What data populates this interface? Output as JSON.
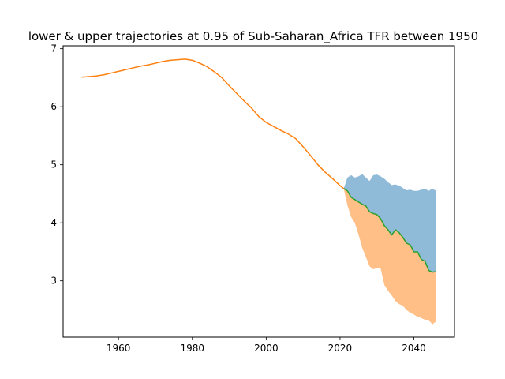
{
  "chart_data": {
    "type": "area",
    "title": "lower & upper trajectories at 0.95 of Sub-Saharan_Africa TFR between 1950",
    "xlabel": "",
    "ylabel": "",
    "xlim": [
      1945,
      2051
    ],
    "ylim": [
      2.03,
      7.05
    ],
    "xticks": [
      1960,
      1980,
      2000,
      2020,
      2040
    ],
    "yticks": [
      3,
      4,
      5,
      6,
      7
    ],
    "grid": false,
    "historical": {
      "x": [
        1950,
        1952,
        1954,
        1956,
        1958,
        1960,
        1962,
        1964,
        1966,
        1968,
        1970,
        1972,
        1974,
        1976,
        1978,
        1980,
        1982,
        1984,
        1986,
        1988,
        1990,
        1992,
        1994,
        1996,
        1998,
        2000,
        2002,
        2004,
        2006,
        2008,
        2010,
        2012,
        2014,
        2016,
        2018,
        2020,
        2021
      ],
      "values": [
        6.51,
        6.52,
        6.53,
        6.55,
        6.58,
        6.61,
        6.64,
        6.67,
        6.7,
        6.72,
        6.75,
        6.78,
        6.8,
        6.81,
        6.82,
        6.8,
        6.75,
        6.69,
        6.6,
        6.5,
        6.36,
        6.23,
        6.1,
        5.98,
        5.83,
        5.73,
        5.66,
        5.59,
        5.53,
        5.45,
        5.31,
        5.16,
        5.0,
        4.87,
        4.76,
        4.64,
        4.59
      ]
    },
    "projection": {
      "x": [
        2021,
        2022,
        2023,
        2024,
        2025,
        2026,
        2027,
        2028,
        2029,
        2030,
        2031,
        2032,
        2033,
        2034,
        2035,
        2036,
        2037,
        2038,
        2039,
        2040,
        2041,
        2042,
        2043,
        2044,
        2045,
        2046
      ],
      "median": [
        4.59,
        4.55,
        4.44,
        4.4,
        4.36,
        4.32,
        4.29,
        4.19,
        4.16,
        4.14,
        4.07,
        3.95,
        3.88,
        3.79,
        3.88,
        3.83,
        3.75,
        3.65,
        3.62,
        3.5,
        3.5,
        3.37,
        3.34,
        3.18,
        3.15,
        3.16
      ],
      "upper": [
        4.59,
        4.78,
        4.82,
        4.78,
        4.8,
        4.84,
        4.78,
        4.72,
        4.82,
        4.83,
        4.8,
        4.76,
        4.7,
        4.65,
        4.66,
        4.64,
        4.6,
        4.56,
        4.57,
        4.55,
        4.55,
        4.57,
        4.59,
        4.55,
        4.59,
        4.55
      ],
      "lower": [
        4.59,
        4.3,
        4.1,
        4.0,
        3.8,
        3.57,
        3.41,
        3.25,
        3.2,
        3.22,
        3.21,
        2.93,
        2.83,
        2.75,
        2.65,
        2.6,
        2.57,
        2.5,
        2.45,
        2.42,
        2.38,
        2.36,
        2.33,
        2.33,
        2.25,
        2.3
      ]
    },
    "colors": {
      "upper_band": "#8fbbd9",
      "lower_band": "#ffbf86",
      "historical_line": "#ff7f0e",
      "median_line": "#2ca02c",
      "axes": "#000000"
    }
  }
}
